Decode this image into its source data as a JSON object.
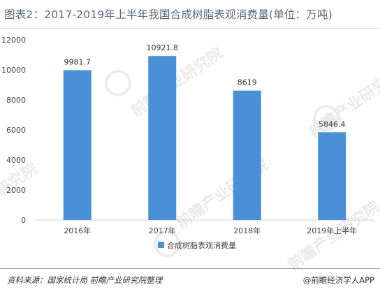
{
  "header": {
    "title": "图表2：2017-2019年上半年我国合成树脂表观消费量(单位：万吨)"
  },
  "watermarks": [
    "前瞻产业研究院",
    "前瞻产业研究院",
    "研究院",
    "前瞻产业研究院",
    "前瞻产业研究院"
  ],
  "footer": {
    "source": "资料来源：国家统计局 前瞻产业研究院整理",
    "brand": "@前瞻经济学人APP"
  },
  "chart_data": {
    "type": "bar",
    "title": "",
    "categories": [
      "2016年",
      "2017年",
      "2018年",
      "2019年上半年"
    ],
    "series": [
      {
        "name": "合成树脂表观消费量",
        "values": [
          9981.7,
          10921.8,
          8619,
          5846.4
        ],
        "color": "#4a90d9"
      }
    ],
    "data_labels": [
      "9981.7",
      "10921.8",
      "8619",
      "5846.4"
    ],
    "ylim": [
      0,
      12000
    ],
    "yticks": [
      0,
      2000,
      4000,
      6000,
      8000,
      10000,
      12000
    ],
    "grid": false,
    "legend_position": "bottom"
  }
}
